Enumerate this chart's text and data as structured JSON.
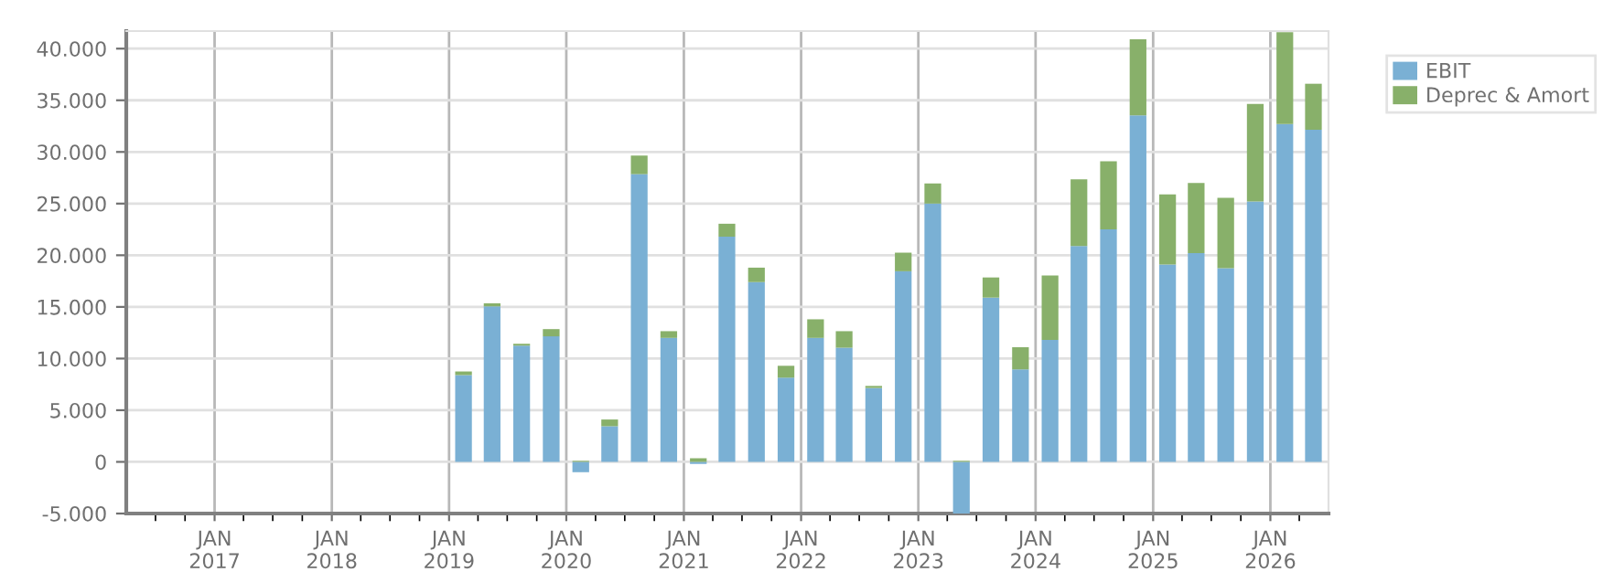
{
  "chart_data": {
    "type": "bar",
    "stacked": true,
    "x": [
      "2019-02-15",
      "2019-05-15",
      "2019-08-15",
      "2019-11-15",
      "2020-02-15",
      "2020-05-15",
      "2020-08-15",
      "2020-11-15",
      "2021-02-15",
      "2021-05-15",
      "2021-08-15",
      "2021-11-15",
      "2022-02-15",
      "2022-05-15",
      "2022-08-15",
      "2022-11-15",
      "2023-02-15",
      "2023-05-15",
      "2023-08-15",
      "2023-11-15",
      "2024-02-15",
      "2024-05-15",
      "2024-08-15",
      "2024-11-15",
      "2025-02-15",
      "2025-05-15",
      "2025-08-15",
      "2025-11-15",
      "2026-02-15",
      "2026-05-15"
    ],
    "series": [
      {
        "name": "EBIT",
        "color": "#7ab0d4",
        "values": [
          8400,
          15050,
          11250,
          12150,
          -1000,
          3450,
          27850,
          12000,
          -200,
          21800,
          17400,
          8150,
          12000,
          11050,
          7150,
          18450,
          25000,
          -5000,
          15900,
          8950,
          11800,
          20900,
          22500,
          33550,
          19100,
          20200,
          18750,
          25200,
          32700,
          32150
        ]
      },
      {
        "name": "Deprec & Amort",
        "color": "#88b06a",
        "values": [
          350,
          300,
          180,
          700,
          100,
          650,
          1800,
          650,
          350,
          1250,
          1400,
          1150,
          1800,
          1600,
          200,
          1800,
          1950,
          100,
          1950,
          2150,
          6250,
          6450,
          6600,
          7350,
          6800,
          6800,
          6800,
          9450,
          8900,
          4450
        ]
      }
    ],
    "xlim": [
      "2016-04-01",
      "2026-07-01"
    ],
    "xticks": [
      {
        "value": "2016-07-01",
        "label": null
      },
      {
        "value": "2016-10-01",
        "label": null
      },
      {
        "value": "2017-01-01",
        "label": "JAN\n2017"
      },
      {
        "value": "2017-04-01",
        "label": null
      },
      {
        "value": "2017-07-01",
        "label": null
      },
      {
        "value": "2017-10-01",
        "label": null
      },
      {
        "value": "2018-01-01",
        "label": "JAN\n2018"
      },
      {
        "value": "2018-04-01",
        "label": null
      },
      {
        "value": "2018-07-01",
        "label": null
      },
      {
        "value": "2018-10-01",
        "label": null
      },
      {
        "value": "2019-01-01",
        "label": "JAN\n2019"
      },
      {
        "value": "2019-04-01",
        "label": null
      },
      {
        "value": "2019-07-01",
        "label": null
      },
      {
        "value": "2019-10-01",
        "label": null
      },
      {
        "value": "2020-01-01",
        "label": "JAN\n2020"
      },
      {
        "value": "2020-04-01",
        "label": null
      },
      {
        "value": "2020-07-01",
        "label": null
      },
      {
        "value": "2020-10-01",
        "label": null
      },
      {
        "value": "2021-01-01",
        "label": "JAN\n2021"
      },
      {
        "value": "2021-04-01",
        "label": null
      },
      {
        "value": "2021-07-01",
        "label": null
      },
      {
        "value": "2021-10-01",
        "label": null
      },
      {
        "value": "2022-01-01",
        "label": "JAN\n2022"
      },
      {
        "value": "2022-04-01",
        "label": null
      },
      {
        "value": "2022-07-01",
        "label": null
      },
      {
        "value": "2022-10-01",
        "label": null
      },
      {
        "value": "2023-01-01",
        "label": "JAN\n2023"
      },
      {
        "value": "2023-04-01",
        "label": null
      },
      {
        "value": "2023-07-01",
        "label": null
      },
      {
        "value": "2023-10-01",
        "label": null
      },
      {
        "value": "2024-01-01",
        "label": "JAN\n2024"
      },
      {
        "value": "2024-04-01",
        "label": null
      },
      {
        "value": "2024-07-01",
        "label": null
      },
      {
        "value": "2024-10-01",
        "label": null
      },
      {
        "value": "2025-01-01",
        "label": "JAN\n2025"
      },
      {
        "value": "2025-04-01",
        "label": null
      },
      {
        "value": "2025-07-01",
        "label": null
      },
      {
        "value": "2025-10-01",
        "label": null
      },
      {
        "value": "2026-01-01",
        "label": "JAN\n2026"
      },
      {
        "value": "2026-04-01",
        "label": null
      }
    ],
    "ylim": [
      -5000,
      41700
    ],
    "yticks": [
      {
        "value": -5000,
        "label": "-5.000"
      },
      {
        "value": 0,
        "label": "0"
      },
      {
        "value": 5000,
        "label": "5.000"
      },
      {
        "value": 10000,
        "label": "10.000"
      },
      {
        "value": 15000,
        "label": "15.000"
      },
      {
        "value": 20000,
        "label": "20.000"
      },
      {
        "value": 25000,
        "label": "25.000"
      },
      {
        "value": 30000,
        "label": "30.000"
      },
      {
        "value": 35000,
        "label": "35.000"
      },
      {
        "value": 40000,
        "label": "40.000"
      }
    ],
    "grid": true,
    "legend": "top right"
  }
}
